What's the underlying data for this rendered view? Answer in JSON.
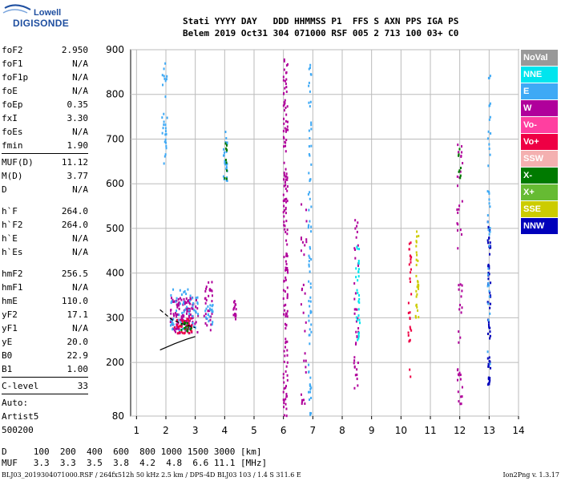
{
  "brand": {
    "line1": "Lowell",
    "line2": "DIGISONDE"
  },
  "header": {
    "line1": "Stati YYYY DAY   DDD HHMMSS P1  FFS S AXN PPS IGA PS",
    "line2": "Belem 2019 Oct31 304 071000 RSF 005 2 713 100 03+ C0"
  },
  "params": [
    {
      "k": "foF2",
      "v": "2.950"
    },
    {
      "k": "foF1",
      "v": "N/A"
    },
    {
      "k": "foF1p",
      "v": "N/A"
    },
    {
      "k": "foE",
      "v": "N/A"
    },
    {
      "k": "foEp",
      "v": "0.35"
    },
    {
      "k": "fxI",
      "v": "3.30"
    },
    {
      "k": "foEs",
      "v": "N/A"
    },
    {
      "k": "fmin",
      "v": "1.90"
    },
    {
      "sep": true
    },
    {
      "k": "MUF(D)",
      "v": "11.12"
    },
    {
      "k": "M(D)",
      "v": "3.77"
    },
    {
      "k": "D",
      "v": "N/A"
    },
    {
      "gap": true
    },
    {
      "k": "h`F",
      "v": "264.0"
    },
    {
      "k": "h`F2",
      "v": "264.0"
    },
    {
      "k": "h`E",
      "v": "N/A"
    },
    {
      "k": "h`Es",
      "v": "N/A"
    },
    {
      "gap": true
    },
    {
      "k": "hmF2",
      "v": "256.5"
    },
    {
      "k": "hmF1",
      "v": "N/A"
    },
    {
      "k": "hmE",
      "v": "110.0"
    },
    {
      "k": "yF2",
      "v": "17.1"
    },
    {
      "k": "yF1",
      "v": "N/A"
    },
    {
      "k": "yE",
      "v": "20.0"
    },
    {
      "k": "B0",
      "v": "22.9"
    },
    {
      "k": "B1",
      "v": "1.00"
    },
    {
      "sep": true
    },
    {
      "k": "C-level",
      "v": "33"
    },
    {
      "sep": true
    },
    {
      "k": "Auto:",
      "v": ""
    },
    {
      "k": "Artist5",
      "v": ""
    },
    {
      "k": "500200",
      "v": ""
    }
  ],
  "legend": [
    {
      "label": "NoVal",
      "color": "#999999"
    },
    {
      "label": "NNE",
      "color": "#00e5ee"
    },
    {
      "label": "E",
      "color": "#3ea9f5"
    },
    {
      "label": "W",
      "color": "#b0009b"
    },
    {
      "label": "Vo-",
      "color": "#ff3fa0"
    },
    {
      "label": "Vo+",
      "color": "#ee0044"
    },
    {
      "label": "SSW",
      "color": "#f4b0b0"
    },
    {
      "label": "X-",
      "color": "#007a00"
    },
    {
      "label": "X+",
      "color": "#66bb33"
    },
    {
      "label": "SSE",
      "color": "#cccc00"
    },
    {
      "label": "NNW",
      "color": "#0000bb"
    }
  ],
  "bottom": {
    "line1": "D     100  200  400  600  800 1000 1500 3000 [km]",
    "line2": "MUF   3.3  3.3  3.5  3.8  4.2  4.8  6.6 11.1 [MHz]"
  },
  "footer": {
    "left": "BLJ03_2019304071000.RSF / 264fx512h 50 kHz 2.5 km / DPS-4D BLJ03 103 / 1.4 S 311.6 E",
    "right": "Ion2Png v. 1.3.17"
  },
  "chart_data": {
    "type": "scatter",
    "title": "",
    "xlabel": "",
    "ylabel": "",
    "xlim": [
      0.8,
      14.0
    ],
    "ylim": [
      80,
      900
    ],
    "x_ticks": [
      1,
      2,
      3,
      4,
      5,
      6,
      7,
      8,
      9,
      10,
      11,
      12,
      13,
      14
    ],
    "y_ticks": [
      80,
      200,
      300,
      400,
      500,
      600,
      700,
      800,
      900
    ],
    "grid": true,
    "traces": [
      {
        "name": "O-trace",
        "style": "dashed",
        "points": [
          [
            1.8,
            318
          ],
          [
            2.2,
            296
          ],
          [
            2.5,
            288
          ],
          [
            2.8,
            282
          ],
          [
            3.0,
            278
          ]
        ]
      },
      {
        "name": "X-trace",
        "style": "solid",
        "points": [
          [
            1.8,
            228
          ],
          [
            2.3,
            242
          ],
          [
            2.7,
            252
          ],
          [
            3.0,
            258
          ]
        ]
      }
    ],
    "echo_clusters": [
      {
        "color": "#3ea9f5",
        "x": [
          1.85,
          2.05
        ],
        "y": [
          640,
          870
        ],
        "n": 30
      },
      {
        "color": "#b0009b",
        "x": [
          2.15,
          3.1
        ],
        "y": [
          265,
          345
        ],
        "n": 120
      },
      {
        "color": "#3ea9f5",
        "x": [
          2.15,
          3.1
        ],
        "y": [
          270,
          365
        ],
        "n": 60
      },
      {
        "color": "#ee0044",
        "x": [
          2.3,
          2.9
        ],
        "y": [
          265,
          300
        ],
        "n": 40
      },
      {
        "color": "#007a00",
        "x": [
          2.5,
          2.9
        ],
        "y": [
          270,
          290
        ],
        "n": 15
      },
      {
        "color": "#b0009b",
        "x": [
          3.3,
          3.6
        ],
        "y": [
          270,
          380
        ],
        "n": 30
      },
      {
        "color": "#3ea9f5",
        "x": [
          3.3,
          3.6
        ],
        "y": [
          285,
          330
        ],
        "n": 20
      },
      {
        "color": "#3ea9f5",
        "x": [
          3.95,
          4.1
        ],
        "y": [
          600,
          720
        ],
        "n": 25
      },
      {
        "color": "#007a00",
        "x": [
          3.98,
          4.08
        ],
        "y": [
          610,
          700
        ],
        "n": 10
      },
      {
        "color": "#b0009b",
        "x": [
          4.3,
          4.45
        ],
        "y": [
          295,
          345
        ],
        "n": 15
      },
      {
        "color": "#b0009b",
        "x": [
          6.0,
          6.15
        ],
        "y": [
          80,
          900
        ],
        "n": 160
      },
      {
        "color": "#3ea9f5",
        "x": [
          6.85,
          6.95
        ],
        "y": [
          80,
          890
        ],
        "n": 80
      },
      {
        "color": "#b0009b",
        "x": [
          6.6,
          6.8
        ],
        "y": [
          100,
          580
        ],
        "n": 30
      },
      {
        "color": "#b0009b",
        "x": [
          8.4,
          8.55
        ],
        "y": [
          130,
          520
        ],
        "n": 40
      },
      {
        "color": "#00e5ee",
        "x": [
          8.45,
          8.6
        ],
        "y": [
          250,
          480
        ],
        "n": 30
      },
      {
        "color": "#ee0044",
        "x": [
          10.25,
          10.35
        ],
        "y": [
          160,
          500
        ],
        "n": 30
      },
      {
        "color": "#cccc00",
        "x": [
          10.5,
          10.6
        ],
        "y": [
          300,
          510
        ],
        "n": 30
      },
      {
        "color": "#b0009b",
        "x": [
          11.9,
          12.1
        ],
        "y": [
          100,
          690
        ],
        "n": 50
      },
      {
        "color": "#007a00",
        "x": [
          11.95,
          12.05
        ],
        "y": [
          610,
          680
        ],
        "n": 8
      },
      {
        "color": "#0000bb",
        "x": [
          12.95,
          13.05
        ],
        "y": [
          150,
          520
        ],
        "n": 60
      },
      {
        "color": "#3ea9f5",
        "x": [
          12.95,
          13.05
        ],
        "y": [
          160,
          880
        ],
        "n": 40
      }
    ]
  }
}
